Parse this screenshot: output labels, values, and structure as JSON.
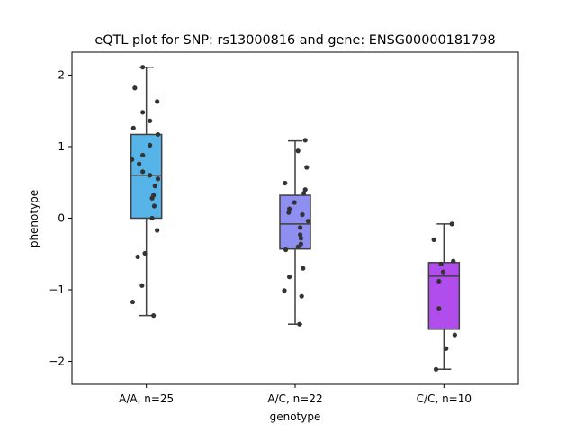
{
  "chart_data": {
    "type": "box",
    "title": "eQTL plot for SNP: rs13000816 and gene: ENSG00000181798",
    "xlabel": "genotype",
    "ylabel": "phenotype",
    "ylim": [
      -2.32,
      2.32
    ],
    "yticks": [
      {
        "value": 2,
        "label": "2"
      },
      {
        "value": 1,
        "label": "1"
      },
      {
        "value": 0,
        "label": "0"
      },
      {
        "value": -1,
        "label": "−1"
      },
      {
        "value": -2,
        "label": "−2"
      }
    ],
    "categories": [
      "A/A, n=25",
      "A/C, n=22",
      "C/C, n=10"
    ],
    "boxes": [
      {
        "category": "A/A, n=25",
        "color": "#56b4e9",
        "q1": 0.0,
        "median": 0.6,
        "q3": 1.17,
        "whisker_low": -1.36,
        "whisker_high": 2.11,
        "points": [
          [
            -0.05,
            2.11
          ],
          [
            -0.16,
            1.82
          ],
          [
            0.15,
            1.63
          ],
          [
            -0.05,
            1.48
          ],
          [
            0.05,
            1.36
          ],
          [
            -0.18,
            1.26
          ],
          [
            0.16,
            1.17
          ],
          [
            0.05,
            1.02
          ],
          [
            -0.05,
            0.88
          ],
          [
            -0.2,
            0.82
          ],
          [
            -0.1,
            0.76
          ],
          [
            -0.05,
            0.65
          ],
          [
            0.05,
            0.6
          ],
          [
            0.16,
            0.55
          ],
          [
            0.12,
            0.45
          ],
          [
            0.1,
            0.32
          ],
          [
            0.08,
            0.28
          ],
          [
            0.11,
            0.17
          ],
          [
            0.08,
            0.0
          ],
          [
            0.15,
            -0.17
          ],
          [
            -0.02,
            -0.49
          ],
          [
            -0.12,
            -0.54
          ],
          [
            -0.06,
            -0.94
          ],
          [
            -0.19,
            -1.17
          ],
          [
            0.1,
            -1.36
          ]
        ]
      },
      {
        "category": "A/C, n=22",
        "color": "#8f8ff2",
        "q1": -0.43,
        "median": -0.08,
        "q3": 0.32,
        "whisker_low": -1.48,
        "whisker_high": 1.08,
        "points": [
          [
            0.14,
            1.09
          ],
          [
            0.04,
            0.94
          ],
          [
            0.16,
            0.71
          ],
          [
            -0.14,
            0.49
          ],
          [
            0.14,
            0.4
          ],
          [
            0.12,
            0.35
          ],
          [
            -0.01,
            0.22
          ],
          [
            -0.08,
            0.13
          ],
          [
            -0.09,
            0.08
          ],
          [
            0.1,
            0.05
          ],
          [
            0.18,
            -0.04
          ],
          [
            0.07,
            -0.13
          ],
          [
            0.07,
            -0.23
          ],
          [
            0.08,
            -0.28
          ],
          [
            0.08,
            -0.36
          ],
          [
            0.04,
            -0.4
          ],
          [
            -0.13,
            -0.44
          ],
          [
            0.11,
            -0.7
          ],
          [
            -0.08,
            -0.82
          ],
          [
            -0.15,
            -1.01
          ],
          [
            0.09,
            -1.09
          ],
          [
            0.06,
            -1.48
          ]
        ]
      },
      {
        "category": "C/C, n=10",
        "color": "#b24ded",
        "q1": -1.55,
        "median": -0.81,
        "q3": -0.62,
        "whisker_low": -2.11,
        "whisker_high": -0.08,
        "points": [
          [
            0.11,
            -0.08
          ],
          [
            -0.14,
            -0.3
          ],
          [
            0.13,
            -0.6
          ],
          [
            -0.04,
            -0.64
          ],
          [
            -0.01,
            -0.75
          ],
          [
            -0.07,
            -0.88
          ],
          [
            -0.07,
            -1.26
          ],
          [
            0.03,
            -1.82
          ],
          [
            0.15,
            -1.63
          ],
          [
            -0.11,
            -2.11
          ]
        ]
      }
    ]
  }
}
